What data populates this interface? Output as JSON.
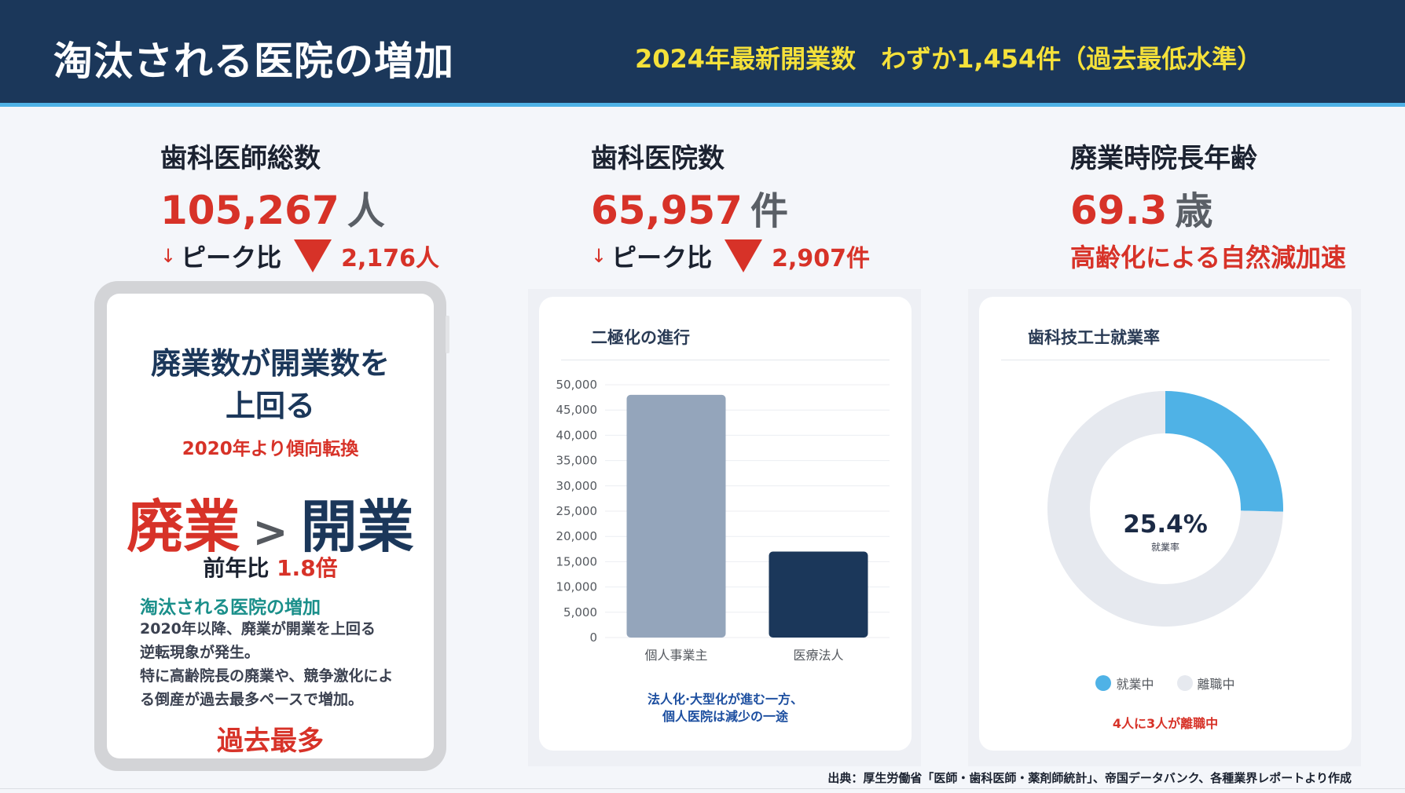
{
  "header": {
    "title": "淘汰される医院の増加",
    "subtitle": "2024年最新開業数　わずか1,454件（過去最低水準）"
  },
  "kpis": [
    {
      "label": "歯科医師総数",
      "value": "105,267",
      "unit": "人",
      "arrow": "↓",
      "sub_label": "ピーク比",
      "delta": "2,176人"
    },
    {
      "label": "歯科医院数",
      "value": "65,957",
      "unit": "件",
      "arrow": "↓",
      "sub_label": "ピーク比",
      "delta": "2,907件"
    },
    {
      "label": "廃業時院長年齢",
      "value": "69.3",
      "unit": "歳",
      "note": "高齢化による自然減加速"
    }
  ],
  "tablet": {
    "title_line1": "廃業数が開業数を",
    "title_line2": "上回る",
    "since": "2020年より傾向転換",
    "haigyo": "廃業",
    "gt": ">",
    "kaigyo": "開業",
    "ratio_label": "前年比",
    "ratio_value": "1.8倍",
    "teal_heading": "淘汰される医院の増加",
    "body_line1": "2020年以降、廃業が開業を上回る",
    "body_line2": "逆転現象が発生。",
    "body_line3": "特に高齢院長の廃業や、競争激化によ",
    "body_line4": "る倒産が過去最多ペースで増加。",
    "bottom": "過去最多"
  },
  "bar_card": {
    "title": "二極化の進行",
    "note_line1": "法人化·大型化が進む一方、",
    "note_line2": "個人医院は減少の一途"
  },
  "donut_card": {
    "title": "歯科技工士就業率",
    "center_value": "25.4%",
    "center_label": "就業率",
    "legend": [
      "就業中",
      "離職中"
    ],
    "note": "4人に3人が離職中"
  },
  "source": "出典：厚生労働省「医師・歯科医師・薬剤師統計」、帝国データバンク、各種業界レポートより作成",
  "chart_data": [
    {
      "type": "bar",
      "categories": [
        "個人事業主",
        "医療法人"
      ],
      "values": [
        48000,
        17000
      ],
      "title": "二極化の進行",
      "xlabel": "",
      "ylabel": "",
      "ylim": [
        0,
        50000
      ],
      "yticks": [
        "0",
        "5,000",
        "10,000",
        "15,000",
        "20,000",
        "25,000",
        "30,000",
        "35,000",
        "40,000",
        "45,000",
        "50,000"
      ],
      "colors": [
        "#94a5bb",
        "#1b375a"
      ],
      "grid": true
    },
    {
      "type": "pie",
      "donut": true,
      "categories": [
        "就業中",
        "離職中"
      ],
      "values": [
        25.4,
        74.6
      ],
      "title": "歯科技工士就業率",
      "colors": [
        "#4fb2e6",
        "#e6e9ef"
      ],
      "legend": "bottom"
    }
  ]
}
